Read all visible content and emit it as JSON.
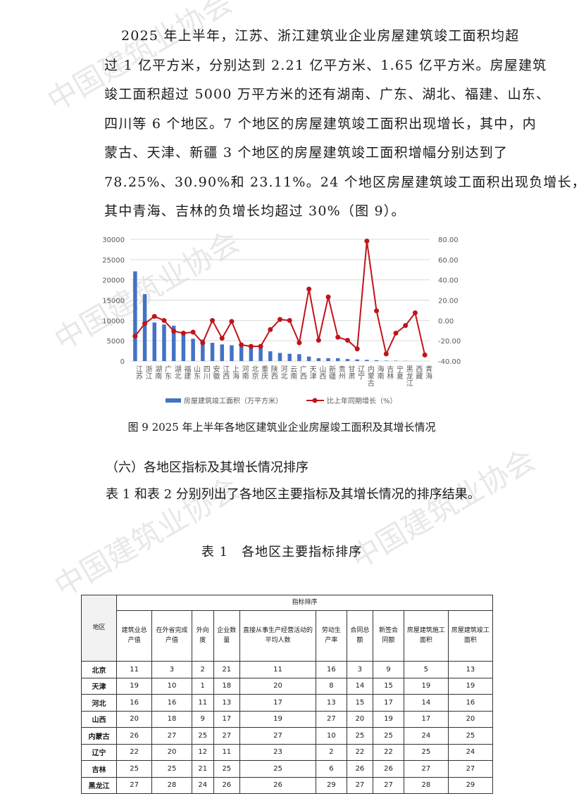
{
  "watermark": "中国建筑业协会",
  "paragraph1": [
    "2025 年上半年，江苏、浙江建筑业企业房屋建筑竣工面积均超",
    "过 1 亿平方米，分别达到 2.21 亿平方米、1.65 亿平方米。房屋建筑",
    "竣工面积超过 5000 万平方米的还有湖南、广东、湖北、福建、山东、",
    "四川等 6 个地区。7 个地区的房屋建筑竣工面积出现增长，其中，内",
    "蒙古、天津、新疆 3 个地区的房屋建筑竣工面积增幅分别达到了",
    "78.25%、30.90%和 23.11%。24 个地区房屋建筑竣工面积出现负增长，",
    "其中青海、吉林的负增长均超过 30%（图 9）。"
  ],
  "chart_data": {
    "type": "bar+line",
    "categories": [
      "江苏",
      "浙江",
      "湖南",
      "广东",
      "湖北",
      "福建",
      "山东",
      "四川",
      "安徽",
      "江西",
      "上海",
      "河南",
      "北京",
      "重庆",
      "陕西",
      "河北",
      "云南",
      "广西",
      "天津",
      "山西",
      "新疆",
      "贵州",
      "甘肃",
      "辽宁",
      "内蒙古",
      "海南",
      "吉林",
      "宁夏",
      "黑龙江",
      "西藏",
      "青海"
    ],
    "series": [
      {
        "name": "房屋建筑竣工面积（万平方米）",
        "type": "bar",
        "axis": "left",
        "color": "#4472c4",
        "values": [
          22100,
          16500,
          9500,
          9000,
          8700,
          6500,
          5500,
          5300,
          4500,
          4100,
          3900,
          3700,
          3500,
          3400,
          2400,
          2000,
          1800,
          1700,
          1100,
          700,
          700,
          700,
          500,
          400,
          300,
          200,
          100,
          100,
          50,
          0,
          0
        ]
      },
      {
        "name": "比上年同期增长（%）",
        "type": "line",
        "axis": "right",
        "color": "#c0141c",
        "values": [
          -15.5,
          -3,
          4,
          0,
          -10.5,
          -12.5,
          -11.5,
          -22,
          0,
          -17.5,
          -1,
          -24,
          -25.5,
          -25.5,
          -9,
          1,
          0,
          -22,
          30.9,
          -19.5,
          23.11,
          -16.5,
          -19.5,
          -28,
          78.25,
          9.5,
          -33,
          -12.5,
          -5,
          7.5,
          -34
        ]
      }
    ],
    "left_ticks": [
      "0",
      "5000",
      "10000",
      "15000",
      "20000",
      "25000",
      "30000"
    ],
    "right_ticks": [
      "-40.00",
      "-20.00",
      "0.00",
      "20.00",
      "40.00",
      "60.00",
      "80.00"
    ],
    "ylim_left": [
      0,
      30000
    ],
    "ylim_right": [
      -40,
      80
    ],
    "grid": true,
    "legend": "bottom"
  },
  "caption": "图 9 2025 年上半年各地区建筑业企业房屋竣工面积及其增长情况",
  "heading": "（六）各地区指标及其增长情况排序",
  "paragraph2": "表 1 和表 2 分别列出了各地区主要指标及其增长情况的排序结果。",
  "table_title": "表 1　各地区主要指标排序",
  "table": {
    "region_header": "地区",
    "group_header": "指标排序",
    "columns": [
      "建筑业总产值",
      "在外省完成产值",
      "外向度",
      "企业数量",
      "直接从事生产经营活动的平均人数",
      "劳动生产率",
      "合同总额",
      "新签合同额",
      "房屋建筑施工面积",
      "房屋建筑竣工面积"
    ],
    "rows": [
      {
        "region": "北京",
        "values": [
          "11",
          "3",
          "2",
          "21",
          "11",
          "16",
          "3",
          "9",
          "5",
          "13"
        ]
      },
      {
        "region": "天津",
        "values": [
          "19",
          "10",
          "1",
          "18",
          "20",
          "8",
          "14",
          "15",
          "19",
          "19"
        ]
      },
      {
        "region": "河北",
        "values": [
          "16",
          "16",
          "11",
          "13",
          "17",
          "13",
          "15",
          "17",
          "14",
          "16"
        ]
      },
      {
        "region": "山西",
        "values": [
          "20",
          "18",
          "9",
          "17",
          "19",
          "27",
          "20",
          "19",
          "17",
          "20"
        ]
      },
      {
        "region": "内蒙古",
        "values": [
          "26",
          "27",
          "25",
          "27",
          "27",
          "10",
          "25",
          "25",
          "24",
          "25"
        ]
      },
      {
        "region": "辽宁",
        "values": [
          "22",
          "20",
          "12",
          "11",
          "23",
          "2",
          "22",
          "22",
          "25",
          "24"
        ]
      },
      {
        "region": "吉林",
        "values": [
          "25",
          "25",
          "21",
          "25",
          "25",
          "6",
          "26",
          "26",
          "27",
          "27"
        ]
      },
      {
        "region": "黑龙江",
        "values": [
          "27",
          "28",
          "24",
          "26",
          "26",
          "29",
          "27",
          "27",
          "28",
          "29"
        ]
      }
    ]
  }
}
